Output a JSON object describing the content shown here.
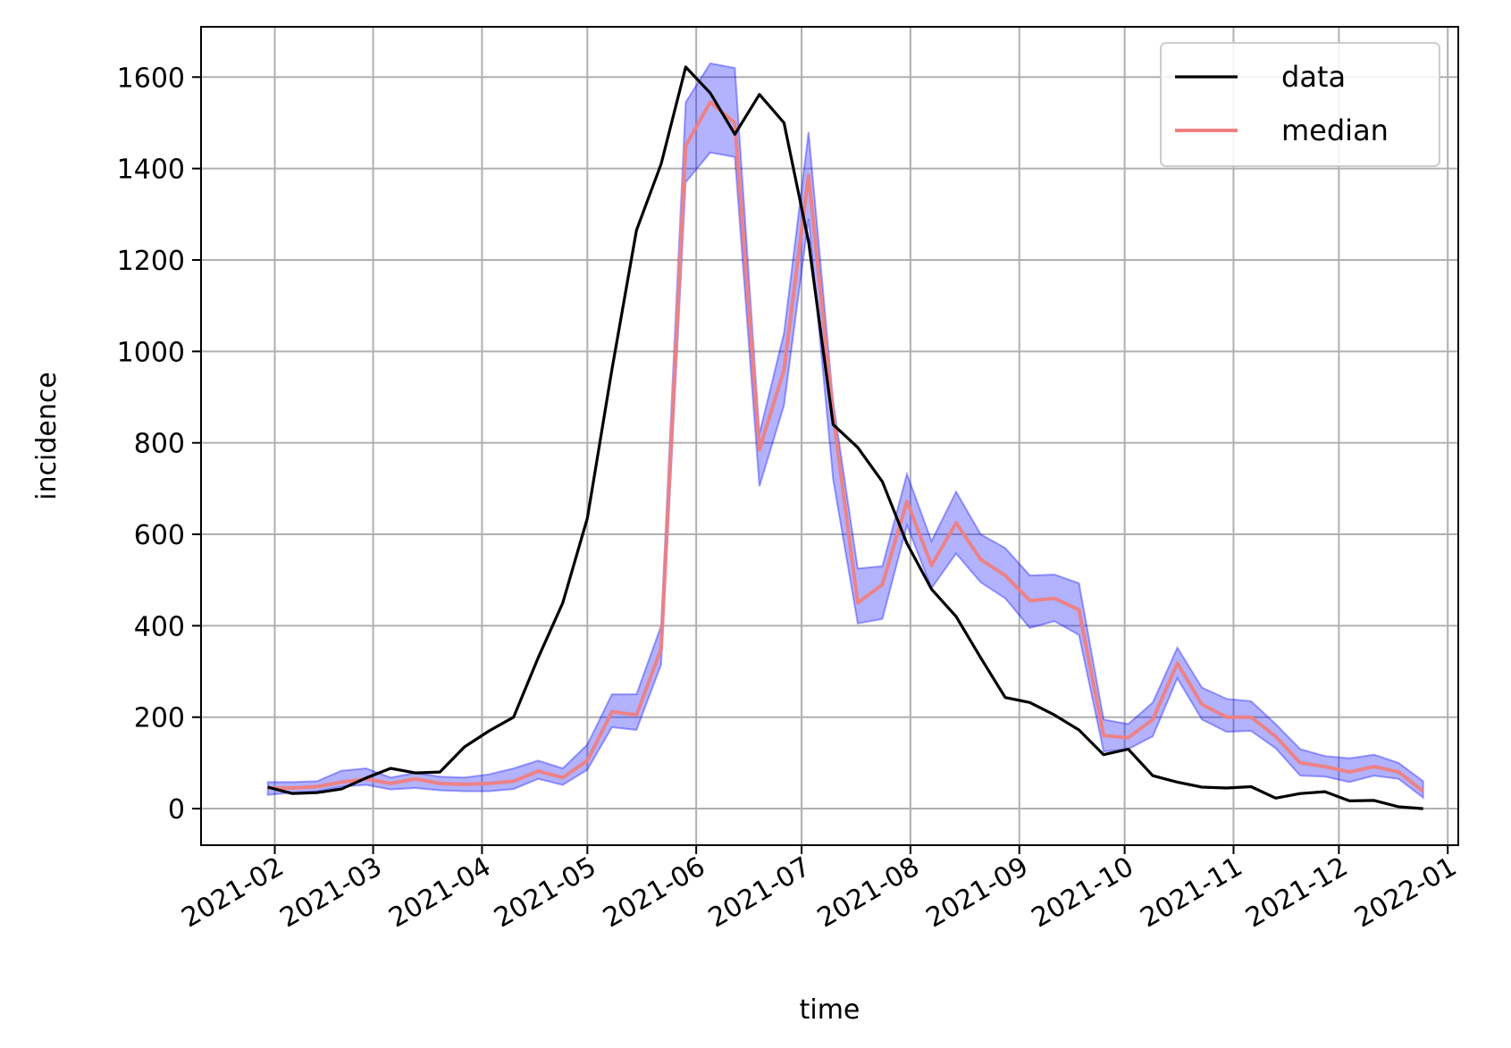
{
  "chart_data": {
    "type": "line",
    "title": "",
    "xlabel": "time",
    "ylabel": "incidence",
    "x_tick_labels": [
      "2021-02",
      "2021-03",
      "2021-04",
      "2021-05",
      "2021-06",
      "2021-07",
      "2021-08",
      "2021-09",
      "2021-10",
      "2021-11",
      "2021-12",
      "2022-01"
    ],
    "y_tick_labels": [
      "0",
      "200",
      "400",
      "600",
      "800",
      "1000",
      "1200",
      "1400",
      "1600"
    ],
    "y_ticks": [
      0,
      200,
      400,
      600,
      800,
      1000,
      1200,
      1400,
      1600
    ],
    "ylim": [
      -80,
      1710
    ],
    "xlim": [
      "2021-01-11",
      "2022-01-04"
    ],
    "grid": true,
    "legend_position": "upper right",
    "x": [
      "2021-01-30",
      "2021-02-06",
      "2021-02-13",
      "2021-02-20",
      "2021-02-27",
      "2021-03-06",
      "2021-03-13",
      "2021-03-20",
      "2021-03-27",
      "2021-04-03",
      "2021-04-10",
      "2021-04-17",
      "2021-04-24",
      "2021-05-01",
      "2021-05-08",
      "2021-05-15",
      "2021-05-22",
      "2021-05-29",
      "2021-06-05",
      "2021-06-12",
      "2021-06-19",
      "2021-06-26",
      "2021-07-03",
      "2021-07-10",
      "2021-07-17",
      "2021-07-24",
      "2021-07-31",
      "2021-08-07",
      "2021-08-14",
      "2021-08-21",
      "2021-08-28",
      "2021-09-04",
      "2021-09-11",
      "2021-09-18",
      "2021-09-25",
      "2021-10-02",
      "2021-10-09",
      "2021-10-16",
      "2021-10-23",
      "2021-10-30",
      "2021-11-06",
      "2021-11-13",
      "2021-11-20",
      "2021-11-27",
      "2021-12-04",
      "2021-12-11",
      "2021-12-18",
      "2021-12-25"
    ],
    "series": [
      {
        "name": "data",
        "color": "#000000",
        "values": [
          47,
          33,
          35,
          43,
          67,
          88,
          78,
          80,
          135,
          170,
          200,
          330,
          450,
          635,
          960,
          1265,
          1410,
          1622,
          1565,
          1475,
          1562,
          1500,
          1240,
          840,
          790,
          715,
          580,
          480,
          420,
          330,
          243,
          232,
          205,
          172,
          118,
          130,
          72,
          58,
          47,
          45,
          48,
          23,
          33,
          37,
          17,
          18,
          4,
          0
        ]
      },
      {
        "name": "median",
        "color": "#f08080",
        "values": [
          45,
          45,
          48,
          58,
          65,
          55,
          65,
          55,
          53,
          55,
          60,
          82,
          68,
          105,
          212,
          205,
          350,
          1450,
          1545,
          1500,
          785,
          960,
          1385,
          860,
          450,
          490,
          672,
          532,
          625,
          545,
          510,
          455,
          460,
          435,
          160,
          155,
          195,
          318,
          228,
          200,
          200,
          158,
          100,
          92,
          80,
          92,
          80,
          38
        ]
      }
    ],
    "band": {
      "color": "#0000ff",
      "upper": [
        58,
        58,
        60,
        83,
        88,
        68,
        78,
        70,
        68,
        75,
        88,
        105,
        88,
        140,
        250,
        250,
        400,
        1545,
        1630,
        1620,
        820,
        1040,
        1480,
        890,
        525,
        530,
        732,
        585,
        693,
        600,
        570,
        510,
        512,
        493,
        195,
        185,
        232,
        352,
        265,
        240,
        235,
        185,
        130,
        115,
        110,
        118,
        100,
        60
      ],
      "lower": [
        30,
        35,
        38,
        48,
        52,
        42,
        45,
        40,
        38,
        38,
        43,
        65,
        52,
        85,
        178,
        172,
        315,
        1370,
        1435,
        1425,
        705,
        882,
        1290,
        720,
        405,
        415,
        620,
        482,
        558,
        495,
        460,
        395,
        410,
        380,
        125,
        130,
        158,
        285,
        195,
        168,
        170,
        132,
        72,
        70,
        58,
        72,
        65,
        24
      ]
    }
  }
}
